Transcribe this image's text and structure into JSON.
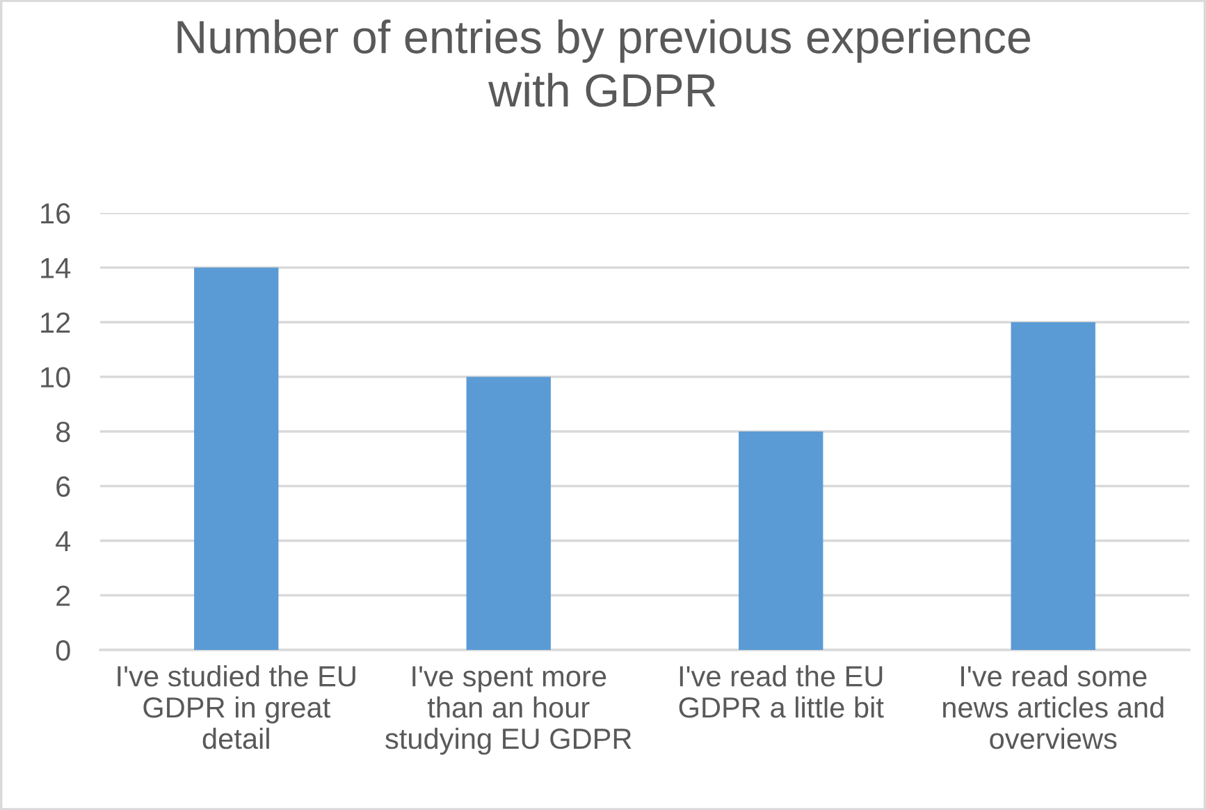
{
  "chart_data": {
    "type": "bar",
    "title": "Number of entries by previous experience with GDPR",
    "categories": [
      "I've studied the EU GDPR in great detail",
      "I've spent more than an hour studying EU GDPR",
      "I've read the EU GDPR a little bit",
      "I've read some news articles and overviews"
    ],
    "values": [
      14,
      10,
      8,
      12
    ],
    "color": "#5b9bd5",
    "ylim": [
      0,
      16
    ],
    "yticks": [
      0,
      2,
      4,
      6,
      8,
      10,
      12,
      14,
      16
    ],
    "grid": "y",
    "legend": false
  }
}
